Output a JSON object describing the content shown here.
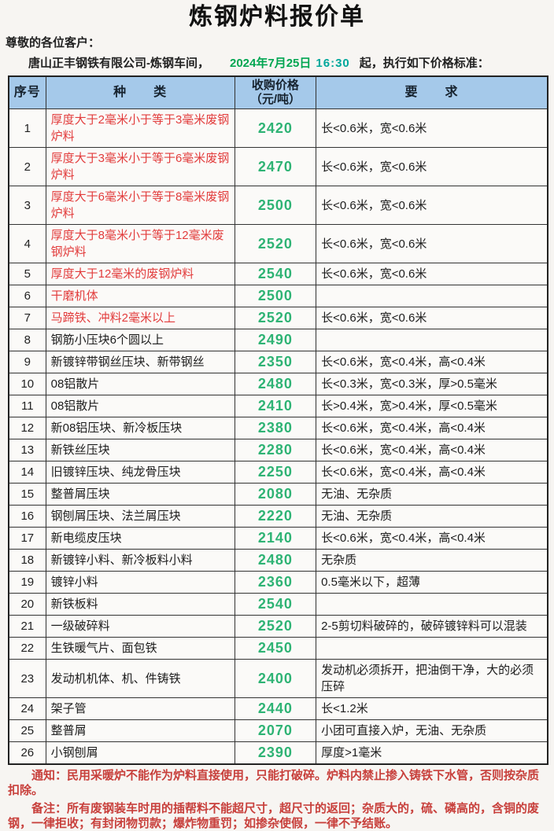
{
  "page": {
    "title": "炼钢炉料报价单",
    "greeting": "尊敬的各位客户：",
    "company": "唐山正丰钢铁有限公司-炼钢车间，",
    "date": "2024年7月25日",
    "time": "16:30",
    "intro_suffix": "起，执行如下价格标准："
  },
  "colors": {
    "header_bg": "#a5c9ea",
    "price_green": "#2eb374",
    "kind_red": "#e23c3c",
    "date_green": "#00a651",
    "time_teal": "#00a79b",
    "note_red": "#c8403c"
  },
  "table": {
    "headers": [
      "序号",
      "种　　类",
      "收购价格\n（元/吨）",
      "要　　求"
    ],
    "rows": [
      {
        "no": "1",
        "kind": "厚度大于2毫米小于等于3毫米废钢炉料",
        "red": true,
        "price": "2420",
        "req": "长<0.6米，宽<0.6米"
      },
      {
        "no": "2",
        "kind": "厚度大于3毫米小于等于6毫米废钢炉料",
        "red": true,
        "price": "2470",
        "req": "长<0.6米，宽<0.6米"
      },
      {
        "no": "3",
        "kind": "厚度大于6毫米小于等于8毫米废钢炉料",
        "red": true,
        "price": "2500",
        "req": "长<0.6米，宽<0.6米"
      },
      {
        "no": "4",
        "kind": "厚度大于8毫米小于等于12毫米废钢炉料",
        "red": true,
        "price": "2520",
        "req": "长<0.6米，宽<0.6米"
      },
      {
        "no": "5",
        "kind": "厚度大于12毫米的废钢炉料",
        "red": true,
        "price": "2540",
        "req": "长<0.6米，宽<0.6米"
      },
      {
        "no": "6",
        "kind": "干磨机体",
        "red": true,
        "price": "2500",
        "req": ""
      },
      {
        "no": "7",
        "kind": "马蹄铁、冲料2毫米以上",
        "red": true,
        "price": "2520",
        "req": "长<0.6米，宽<0.6米"
      },
      {
        "no": "8",
        "kind": "钢筋小压块6个圆以上",
        "red": false,
        "price": "2490",
        "req": ""
      },
      {
        "no": "9",
        "kind": "新镀锌带钢丝压块、新带钢丝",
        "red": false,
        "price": "2350",
        "req": "长<0.6米，宽<0.4米，高<0.4米"
      },
      {
        "no": "10",
        "kind": "08铝散片",
        "red": false,
        "price": "2480",
        "req": "长<0.3米，宽<0.3米，厚>0.5毫米"
      },
      {
        "no": "11",
        "kind": "08铝散片",
        "red": false,
        "price": "2410",
        "req": "长>0.4米，宽>0.4米，厚<0.5毫米"
      },
      {
        "no": "12",
        "kind": "新08铝压块、新冷板压块",
        "red": false,
        "price": "2380",
        "req": "长<0.6米，宽<0.4米，高<0.4米"
      },
      {
        "no": "13",
        "kind": "新铁丝压块",
        "red": false,
        "price": "2280",
        "req": "长<0.6米，宽<0.4米，高<0.4米"
      },
      {
        "no": "14",
        "kind": "旧镀锌压块、纯龙骨压块",
        "red": false,
        "price": "2250",
        "req": "长<0.6米，宽<0.4米，高<0.4米"
      },
      {
        "no": "15",
        "kind": "整普屑压块",
        "red": false,
        "price": "2080",
        "req": "无油、无杂质"
      },
      {
        "no": "16",
        "kind": "钢刨屑压块、法兰屑压块",
        "red": false,
        "price": "2220",
        "req": "无油、无杂质"
      },
      {
        "no": "17",
        "kind": "新电缆皮压块",
        "red": false,
        "price": "2140",
        "req": "长<0.6米，宽<0.4米，高<0.4米"
      },
      {
        "no": "18",
        "kind": "新镀锌小料、新冷板料小料",
        "red": false,
        "price": "2480",
        "req": "无杂质"
      },
      {
        "no": "19",
        "kind": "镀锌小料",
        "red": false,
        "price": "2360",
        "req": "0.5毫米以下，超薄"
      },
      {
        "no": "20",
        "kind": "新铁板料",
        "red": false,
        "price": "2540",
        "req": ""
      },
      {
        "no": "21",
        "kind": "一级破碎料",
        "red": false,
        "price": "2520",
        "req": "2-5剪切料破碎的，破碎镀锌料可以混装"
      },
      {
        "no": "22",
        "kind": "生铁暖气片、面包铁",
        "red": false,
        "price": "2450",
        "req": ""
      },
      {
        "no": "23",
        "kind": "发动机机体、机、件铸铁",
        "red": false,
        "price": "2400",
        "req": "发动机必须拆开，把油倒干净，大的必须压碎"
      },
      {
        "no": "24",
        "kind": "架子管",
        "red": false,
        "price": "2440",
        "req": "长<1.2米"
      },
      {
        "no": "25",
        "kind": "整普屑",
        "red": false,
        "price": "2070",
        "req": "小团可直接入炉，无油、无杂质"
      },
      {
        "no": "26",
        "kind": "小钢刨屑",
        "red": false,
        "price": "2390",
        "req": "厚度>1毫米"
      }
    ]
  },
  "notes": {
    "notice": "通知：民用采暖炉不能作为炉料直接使用，只能打破碎。炉料内禁止掺入铸铁下水管，否则按杂质扣除。",
    "remark": "备注：所有废钢装车时用的插帮料不能超尺寸，超尺寸的返回；杂质大的，硫、磷高的，含铜的废钢，一律拒收；有封闭物罚款；爆炸物重罚；如掺杂使假，一律不予结账。"
  }
}
